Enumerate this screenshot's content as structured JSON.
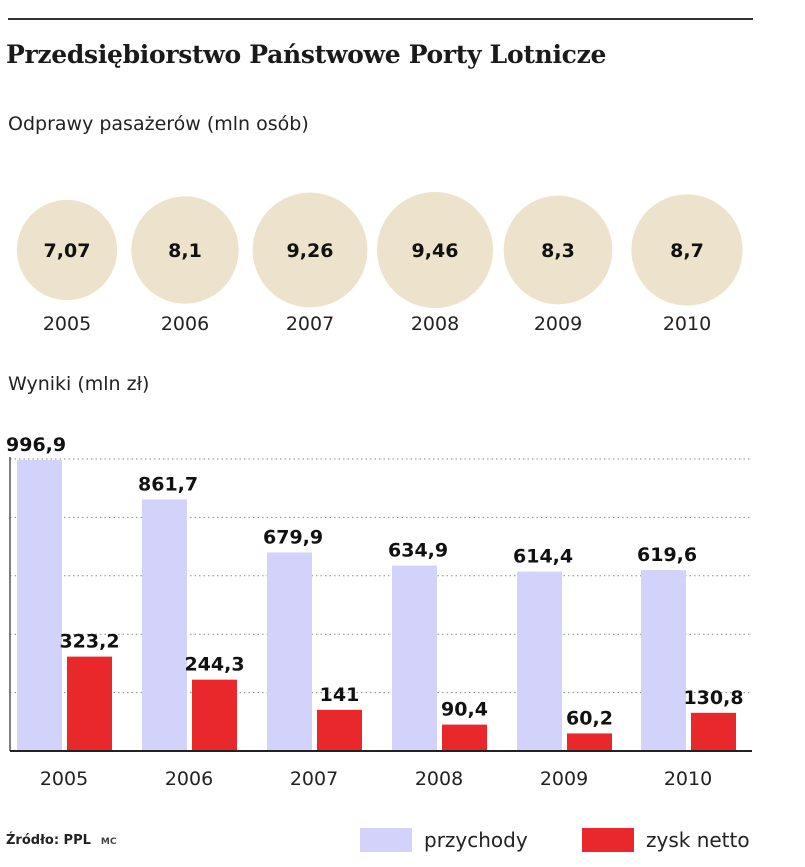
{
  "title": "Przedsiębiorstwo Państwowe Porty Lotnicze",
  "colors": {
    "circle": "#ede2cc",
    "revenue": "#d3d2fa",
    "profit": "#e8282b",
    "grid": "#888888"
  },
  "chart_data": [
    {
      "type": "bubble",
      "title": "Odprawy pasażerów (mln osób)",
      "categories": [
        "2005",
        "2006",
        "2007",
        "2008",
        "2009",
        "2010"
      ],
      "values": [
        7.07,
        8.1,
        9.26,
        9.46,
        8.3,
        8.7
      ],
      "value_labels": [
        "7,07",
        "8,1",
        "9,26",
        "9,46",
        "8,3",
        "8,7"
      ]
    },
    {
      "type": "bar",
      "title": "Wyniki (mln zł)",
      "categories": [
        "2005",
        "2006",
        "2007",
        "2008",
        "2009",
        "2010"
      ],
      "ylim": [
        0,
        1000
      ],
      "grid": true,
      "legend": "bottom-right",
      "series": [
        {
          "name": "przychody",
          "values": [
            996.9,
            861.7,
            679.9,
            634.9,
            614.4,
            619.6
          ],
          "labels": [
            "996,9",
            "861,7",
            "679,9",
            "634,9",
            "614,4",
            "619,6"
          ]
        },
        {
          "name": "zysk netto",
          "values": [
            323.2,
            244.3,
            141,
            90.4,
            60.2,
            130.8
          ],
          "labels": [
            "323,2",
            "244,3",
            "141",
            "90,4",
            "60,2",
            "130,8"
          ]
        }
      ]
    }
  ],
  "footer": {
    "source": "Źródło: PPL",
    "author": "MC"
  }
}
